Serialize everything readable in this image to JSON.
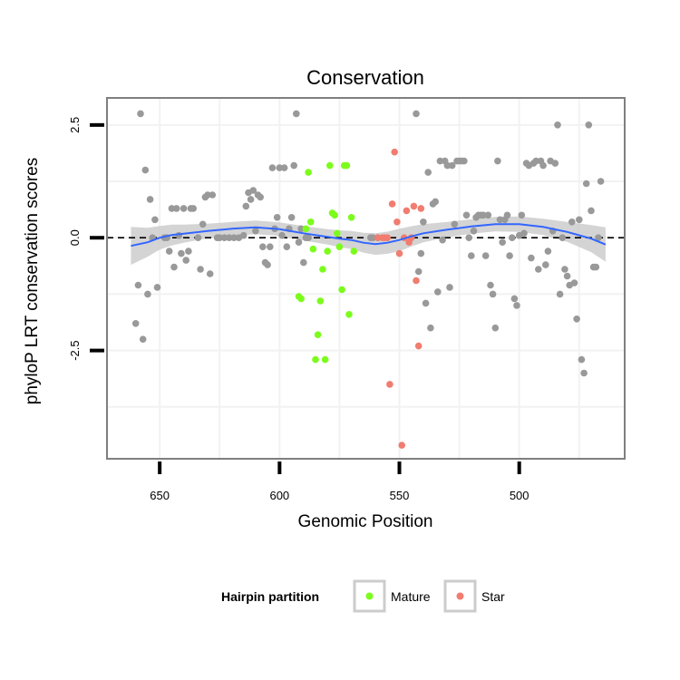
{
  "chart_data": {
    "type": "scatter",
    "title": "Conservation",
    "xlabel": "Genomic Position",
    "ylabel": "phyloP LRT conservation scores",
    "x_reversed": true,
    "xlim": [
      672,
      456
    ],
    "ylim": [
      -4.9,
      3.1
    ],
    "xticks": [
      650,
      600,
      550,
      500
    ],
    "yticks": [
      2.5,
      0.0,
      -2.5
    ],
    "ytick_labels": [
      "2.5",
      "0.0",
      "-2.5"
    ],
    "grid": true,
    "reference_line": {
      "y": 0,
      "style": "dashed",
      "color": "#000000"
    },
    "legend": {
      "title": "Hairpin partition",
      "position": "bottom",
      "entries": [
        {
          "label": "Mature",
          "color": "#7cfc1c"
        },
        {
          "label": "Star",
          "color": "#f07d70"
        }
      ]
    },
    "colors": {
      "other": "#999999",
      "mature": "#7cfc1c",
      "star": "#f07d70",
      "smooth": "#3366ff",
      "band": "#cccccc",
      "panel_border": "#7f7f7f",
      "grid": "#f2f2f2"
    },
    "series": [
      {
        "group": "other",
        "points": [
          [
            660,
            -1.9
          ],
          [
            659,
            -1.05
          ],
          [
            658,
            2.75
          ],
          [
            657,
            -2.25
          ],
          [
            656,
            1.5
          ],
          [
            655,
            -1.25
          ],
          [
            654,
            0.85
          ],
          [
            653,
            0.0
          ],
          [
            652,
            0.4
          ],
          [
            651,
            -1.1
          ],
          [
            648,
            0.0
          ],
          [
            647,
            0.0
          ],
          [
            646,
            -0.3
          ],
          [
            645,
            0.65
          ],
          [
            644,
            -0.65
          ],
          [
            643,
            0.65
          ],
          [
            642,
            0.05
          ],
          [
            641,
            -0.35
          ],
          [
            640,
            0.65
          ],
          [
            639,
            -0.5
          ],
          [
            638,
            -0.3
          ],
          [
            637,
            0.65
          ],
          [
            636,
            0.65
          ],
          [
            634,
            0.0
          ],
          [
            633,
            -0.7
          ],
          [
            632,
            0.3
          ],
          [
            631,
            0.9
          ],
          [
            630,
            0.95
          ],
          [
            629,
            -0.8
          ],
          [
            628,
            0.95
          ],
          [
            626,
            0.0
          ],
          [
            625,
            0.0
          ],
          [
            623,
            0.0
          ],
          [
            621,
            0.0
          ],
          [
            619,
            0.0
          ],
          [
            617,
            0.0
          ],
          [
            615,
            0.05
          ],
          [
            614,
            0.7
          ],
          [
            613,
            1.0
          ],
          [
            612,
            0.85
          ],
          [
            611,
            1.05
          ],
          [
            610,
            0.15
          ],
          [
            609,
            0.95
          ],
          [
            608,
            0.9
          ],
          [
            607,
            -0.2
          ],
          [
            606,
            -0.55
          ],
          [
            605,
            -0.6
          ],
          [
            604,
            -0.2
          ],
          [
            603,
            1.55
          ],
          [
            602,
            0.2
          ],
          [
            601,
            0.45
          ],
          [
            600,
            1.55
          ],
          [
            599,
            0.05
          ],
          [
            598,
            1.55
          ],
          [
            597,
            -0.2
          ],
          [
            596,
            0.2
          ],
          [
            595,
            0.45
          ],
          [
            594,
            1.6
          ],
          [
            593,
            2.75
          ],
          [
            592,
            -0.1
          ],
          [
            591,
            0.2
          ],
          [
            590,
            -0.55
          ],
          [
            589,
            0.0
          ],
          [
            588,
            0.0
          ],
          [
            562,
            0.0
          ],
          [
            561,
            0.0
          ],
          [
            559,
            0.0
          ],
          [
            543,
            2.75
          ],
          [
            542,
            -0.75
          ],
          [
            541,
            -0.35
          ],
          [
            540,
            0.35
          ],
          [
            539,
            -1.45
          ],
          [
            538,
            1.45
          ],
          [
            537,
            -2.0
          ],
          [
            536,
            0.75
          ],
          [
            535,
            0.8
          ],
          [
            534,
            -1.2
          ],
          [
            533,
            1.7
          ],
          [
            532,
            -0.05
          ],
          [
            531,
            1.7
          ],
          [
            530,
            1.6
          ],
          [
            529,
            -1.1
          ],
          [
            528,
            1.6
          ],
          [
            527,
            0.3
          ],
          [
            526,
            1.7
          ],
          [
            525,
            1.7
          ],
          [
            524,
            1.7
          ],
          [
            523,
            1.7
          ],
          [
            522,
            0.5
          ],
          [
            521,
            0.0
          ],
          [
            520,
            -0.4
          ],
          [
            519,
            0.15
          ],
          [
            518,
            0.45
          ],
          [
            517,
            0.5
          ],
          [
            516,
            0.5
          ],
          [
            515,
            0.5
          ],
          [
            514,
            -0.4
          ],
          [
            513,
            0.5
          ],
          [
            512,
            -1.05
          ],
          [
            511,
            -1.25
          ],
          [
            510,
            -2.0
          ],
          [
            509,
            1.7
          ],
          [
            508,
            0.4
          ],
          [
            507,
            -0.1
          ],
          [
            506,
            0.4
          ],
          [
            505,
            0.5
          ],
          [
            504,
            -0.4
          ],
          [
            503,
            0.0
          ],
          [
            502,
            -1.35
          ],
          [
            501,
            -1.5
          ],
          [
            500,
            0.05
          ],
          [
            499,
            0.5
          ],
          [
            498,
            0.1
          ],
          [
            497,
            1.65
          ],
          [
            496,
            1.6
          ],
          [
            495,
            -0.45
          ],
          [
            494,
            1.65
          ],
          [
            493,
            1.7
          ],
          [
            492,
            -0.7
          ],
          [
            491,
            1.7
          ],
          [
            490,
            1.6
          ],
          [
            489,
            -0.6
          ],
          [
            488,
            -0.3
          ],
          [
            487,
            1.7
          ],
          [
            486,
            0.15
          ],
          [
            485,
            1.65
          ],
          [
            484,
            2.5
          ],
          [
            483,
            -1.25
          ],
          [
            482,
            0.0
          ],
          [
            481,
            -0.7
          ],
          [
            480,
            -0.85
          ],
          [
            479,
            -1.05
          ],
          [
            478,
            0.35
          ],
          [
            477,
            -1.0
          ],
          [
            476,
            -1.8
          ],
          [
            475,
            0.4
          ],
          [
            474,
            -2.7
          ],
          [
            473,
            -3.0
          ],
          [
            472,
            1.2
          ],
          [
            471,
            2.5
          ],
          [
            470,
            0.6
          ],
          [
            469,
            -0.65
          ],
          [
            468,
            -0.65
          ],
          [
            467,
            0.0
          ],
          [
            466,
            1.25
          ]
        ]
      },
      {
        "group": "mature",
        "points": [
          [
            592,
            -1.3
          ],
          [
            591,
            -1.35
          ],
          [
            589,
            0.2
          ],
          [
            588,
            1.45
          ],
          [
            587,
            0.35
          ],
          [
            586,
            -0.25
          ],
          [
            585,
            -2.7
          ],
          [
            584,
            -2.15
          ],
          [
            583,
            -1.4
          ],
          [
            582,
            -0.7
          ],
          [
            581,
            -2.7
          ],
          [
            580,
            -0.3
          ],
          [
            579,
            1.6
          ],
          [
            578,
            0.55
          ],
          [
            577,
            0.5
          ],
          [
            576,
            0.1
          ],
          [
            575,
            -0.2
          ],
          [
            574,
            -1.15
          ],
          [
            573,
            1.6
          ],
          [
            572,
            1.6
          ],
          [
            571,
            -1.7
          ],
          [
            570,
            0.45
          ],
          [
            569,
            -0.3
          ]
        ]
      },
      {
        "group": "star",
        "points": [
          [
            559,
            0.0
          ],
          [
            557,
            0.0
          ],
          [
            556,
            0.0
          ],
          [
            555,
            0.0
          ],
          [
            554,
            -3.25
          ],
          [
            553,
            0.75
          ],
          [
            552,
            1.9
          ],
          [
            551,
            0.35
          ],
          [
            550,
            -0.35
          ],
          [
            549,
            -4.6
          ],
          [
            548,
            0.0
          ],
          [
            547,
            0.6
          ],
          [
            546,
            -0.1
          ],
          [
            545,
            0.0
          ],
          [
            544,
            0.7
          ],
          [
            543,
            -0.95
          ],
          [
            542,
            -2.4
          ],
          [
            541,
            0.65
          ]
        ]
      }
    ],
    "smooth_fit": {
      "method": "loess",
      "curve": [
        [
          662,
          -0.18
        ],
        [
          655,
          -0.1
        ],
        [
          650,
          0.0
        ],
        [
          645,
          0.06
        ],
        [
          640,
          0.09
        ],
        [
          630,
          0.15
        ],
        [
          620,
          0.2
        ],
        [
          610,
          0.23
        ],
        [
          600,
          0.19
        ],
        [
          590,
          0.1
        ],
        [
          580,
          0.02
        ],
        [
          575,
          -0.02
        ],
        [
          570,
          -0.05
        ],
        [
          565,
          -0.11
        ],
        [
          560,
          -0.14
        ],
        [
          555,
          -0.11
        ],
        [
          550,
          -0.05
        ],
        [
          545,
          0.03
        ],
        [
          540,
          0.1
        ],
        [
          530,
          0.18
        ],
        [
          520,
          0.25
        ],
        [
          510,
          0.3
        ],
        [
          500,
          0.3
        ],
        [
          490,
          0.24
        ],
        [
          480,
          0.13
        ],
        [
          470,
          -0.02
        ],
        [
          464,
          -0.15
        ]
      ],
      "band_halfwidth": [
        [
          662,
          0.42
        ],
        [
          655,
          0.32
        ],
        [
          650,
          0.26
        ],
        [
          640,
          0.2
        ],
        [
          630,
          0.16
        ],
        [
          620,
          0.15
        ],
        [
          610,
          0.15
        ],
        [
          600,
          0.15
        ],
        [
          590,
          0.16
        ],
        [
          580,
          0.17
        ],
        [
          570,
          0.2
        ],
        [
          560,
          0.24
        ],
        [
          550,
          0.25
        ],
        [
          540,
          0.2
        ],
        [
          530,
          0.17
        ],
        [
          520,
          0.16
        ],
        [
          510,
          0.16
        ],
        [
          500,
          0.17
        ],
        [
          490,
          0.18
        ],
        [
          480,
          0.22
        ],
        [
          470,
          0.3
        ],
        [
          464,
          0.38
        ]
      ]
    }
  }
}
